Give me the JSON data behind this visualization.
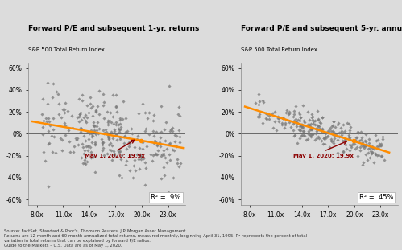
{
  "title1": "Forward P/E and subsequent 1-yr. returns",
  "title2": "Forward P/E and subsequent 5-yr. annualized returns",
  "subtitle": "S&P 500 Total Return Index",
  "xlabel_ticks": [
    8.0,
    11.0,
    14.0,
    17.0,
    20.0,
    23.0
  ],
  "xlabel_tick_labels": [
    "8.0x",
    "11.0x",
    "14.0x",
    "17.0x",
    "20.0x",
    "23.0x"
  ],
  "ylim": [
    -0.65,
    0.65
  ],
  "xlim": [
    7.0,
    25.0
  ],
  "ytick_vals": [
    -0.6,
    -0.4,
    -0.2,
    0.0,
    0.2,
    0.4,
    0.6
  ],
  "ytick_labels": [
    "-60%",
    "-40%",
    "-20%",
    "0%",
    "20%",
    "40%",
    "60%"
  ],
  "annotation_label": "May 1, 2020: 19.9x",
  "annotation_color": "#8B0000",
  "r2_1yr": "R² =  9%",
  "r2_5yr": "R² =  45%",
  "line_color": "#FF8C00",
  "scatter_color": "#7a7a7a",
  "background_color": "#DCDCDC",
  "current_pe": 19.9,
  "footnote": "Source: FactSet, Standard & Poor's, Thomson Reuters, J.P. Morgan Asset Management.\nReturns are 12-month and 60-month annualized total returns, measured monthly, beginning April 31, 1995. R² represents the percent of total\nvariation in total returns that can be explained by forward P/E ratios.\nGuide to the Markets – U.S. Data are as of May 1, 2020."
}
